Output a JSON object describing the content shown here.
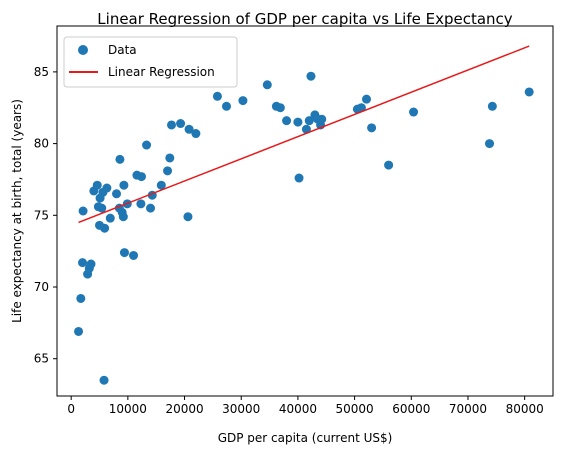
{
  "chart_data": {
    "type": "scatter",
    "title": "Linear Regression of GDP per capita vs Life Expectancy",
    "xlabel": "GDP per capita (current US$)",
    "ylabel": "Life expectancy at birth, total (years)",
    "xlim": [
      -2500,
      85000
    ],
    "ylim": [
      62.4,
      88.2
    ],
    "xticks": [
      0,
      10000,
      20000,
      30000,
      40000,
      50000,
      60000,
      70000,
      80000
    ],
    "xtick_labels": [
      "0",
      "10000",
      "20000",
      "30000",
      "40000",
      "50000",
      "60000",
      "70000",
      "80000"
    ],
    "yticks": [
      65,
      70,
      75,
      80,
      85
    ],
    "ytick_labels": [
      "65",
      "70",
      "75",
      "80",
      "85"
    ],
    "grid": false,
    "legend_position": "top-left",
    "series": [
      {
        "name": "Data",
        "kind": "scatter",
        "color": "#1f77b4",
        "points": [
          [
            1300,
            66.9
          ],
          [
            1700,
            69.2
          ],
          [
            2000,
            71.7
          ],
          [
            2100,
            75.3
          ],
          [
            2900,
            70.9
          ],
          [
            3200,
            71.3
          ],
          [
            3500,
            71.6
          ],
          [
            4000,
            76.7
          ],
          [
            4600,
            77.1
          ],
          [
            4800,
            75.6
          ],
          [
            5000,
            74.3
          ],
          [
            5100,
            76.2
          ],
          [
            5400,
            75.5
          ],
          [
            5600,
            76.6
          ],
          [
            5900,
            74.1
          ],
          [
            5800,
            63.5
          ],
          [
            6300,
            76.9
          ],
          [
            6900,
            74.8
          ],
          [
            8000,
            76.5
          ],
          [
            8600,
            78.9
          ],
          [
            8500,
            75.5
          ],
          [
            9000,
            75.2
          ],
          [
            9200,
            74.9
          ],
          [
            9300,
            77.1
          ],
          [
            9400,
            72.4
          ],
          [
            9900,
            75.8
          ],
          [
            11000,
            72.2
          ],
          [
            11600,
            77.8
          ],
          [
            12300,
            75.8
          ],
          [
            12400,
            77.7
          ],
          [
            13300,
            79.9
          ],
          [
            14000,
            75.5
          ],
          [
            14300,
            76.4
          ],
          [
            15900,
            77.1
          ],
          [
            17000,
            78.1
          ],
          [
            17400,
            79.0
          ],
          [
            17700,
            81.3
          ],
          [
            19300,
            81.4
          ],
          [
            20600,
            74.9
          ],
          [
            20800,
            81.0
          ],
          [
            22000,
            80.7
          ],
          [
            25800,
            83.3
          ],
          [
            27400,
            82.6
          ],
          [
            30300,
            83.0
          ],
          [
            34600,
            84.1
          ],
          [
            36200,
            82.6
          ],
          [
            36900,
            82.5
          ],
          [
            38000,
            81.6
          ],
          [
            40000,
            81.5
          ],
          [
            40200,
            77.6
          ],
          [
            41500,
            81.0
          ],
          [
            42000,
            81.6
          ],
          [
            42300,
            84.7
          ],
          [
            43000,
            82.0
          ],
          [
            43500,
            81.7
          ],
          [
            44000,
            81.3
          ],
          [
            44200,
            81.7
          ],
          [
            50500,
            82.4
          ],
          [
            51200,
            82.5
          ],
          [
            52100,
            83.1
          ],
          [
            53000,
            81.1
          ],
          [
            56000,
            78.5
          ],
          [
            60400,
            82.2
          ],
          [
            73800,
            80.0
          ],
          [
            74300,
            82.6
          ],
          [
            80800,
            83.6
          ]
        ]
      },
      {
        "name": "Linear Regression",
        "kind": "line",
        "color": "#e8191a",
        "points": [
          [
            1300,
            74.5
          ],
          [
            80800,
            86.8
          ]
        ]
      }
    ]
  }
}
